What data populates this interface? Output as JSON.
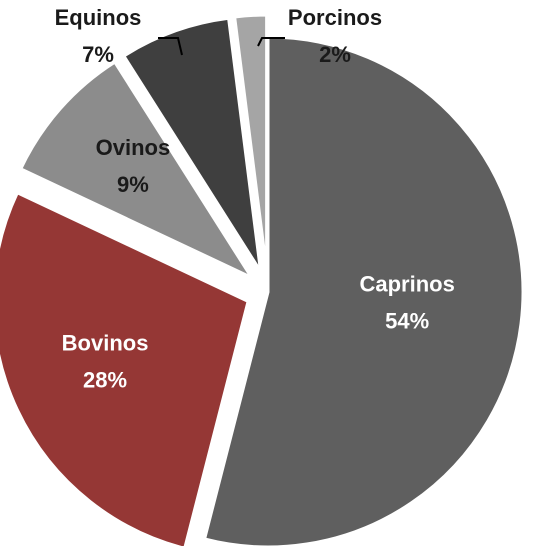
{
  "chart_data": {
    "type": "pie",
    "exploded": true,
    "slices": [
      {
        "name": "Caprinos",
        "value": 54,
        "label": "54%",
        "color": "#5f5f5f",
        "text_color": "#ffffff"
      },
      {
        "name": "Bovinos",
        "value": 28,
        "label": "28%",
        "color": "#953735",
        "text_color": "#ffffff"
      },
      {
        "name": "Ovinos",
        "value": 9,
        "label": "9%",
        "color": "#8c8c8c",
        "text_color": "#1a1a1a"
      },
      {
        "name": "Equinos",
        "value": 7,
        "label": "7%",
        "color": "#3f3f3f",
        "text_color": "#1a1a1a"
      },
      {
        "name": "Porcinos",
        "value": 2,
        "label": "2%",
        "color": "#a5a5a5",
        "text_color": "#1a1a1a"
      }
    ]
  }
}
